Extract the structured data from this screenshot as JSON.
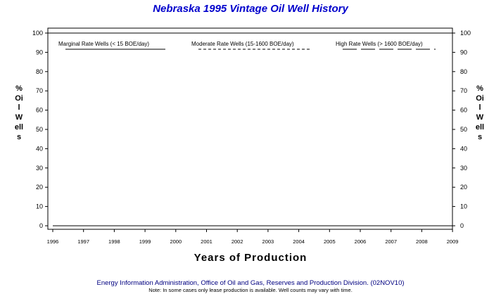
{
  "chart_data": {
    "type": "line",
    "title": "Nebraska 1995 Vintage Oil Well History",
    "xlabel": "Years of Production",
    "ylabel": "% Oil Wells",
    "x": [
      1996,
      1997,
      1998,
      1999,
      2000,
      2001,
      2002,
      2003,
      2004,
      2005,
      2006,
      2007,
      2008,
      2009
    ],
    "xlim": [
      1996,
      2009
    ],
    "ylim": [
      0,
      100
    ],
    "yticks": [
      0,
      10,
      20,
      30,
      40,
      50,
      60,
      70,
      80,
      90,
      100
    ],
    "grid": false,
    "legend_position": "top",
    "series": [
      {
        "name": "Marginal Rate Wells (< 15 BOE/day)",
        "style": "solid",
        "values": [
          0,
          0,
          0,
          0,
          0,
          0,
          0,
          0,
          0,
          0,
          0,
          0,
          0,
          0
        ]
      },
      {
        "name": "Moderate Rate Wells (15-1600 BOE/day)",
        "style": "dashed",
        "values": [
          0,
          0,
          0,
          0,
          0,
          0,
          0,
          0,
          0,
          0,
          0,
          0,
          0,
          0
        ]
      },
      {
        "name": "High Rate Wells (> 1600 BOE/day)",
        "style": "long-dashed",
        "values": [
          0,
          0,
          0,
          0,
          0,
          0,
          0,
          0,
          0,
          0,
          0,
          0,
          0,
          0
        ]
      }
    ]
  },
  "footer": {
    "source": "Energy Information Administration, Office of Oil and Gas, Reserves and Production Division. (02NOV10)",
    "note": "Note: In some cases only lease production is available. Well counts may vary with time."
  },
  "colors": {
    "title": "#0000cc",
    "footer": "#000080",
    "axis": "#000000"
  }
}
